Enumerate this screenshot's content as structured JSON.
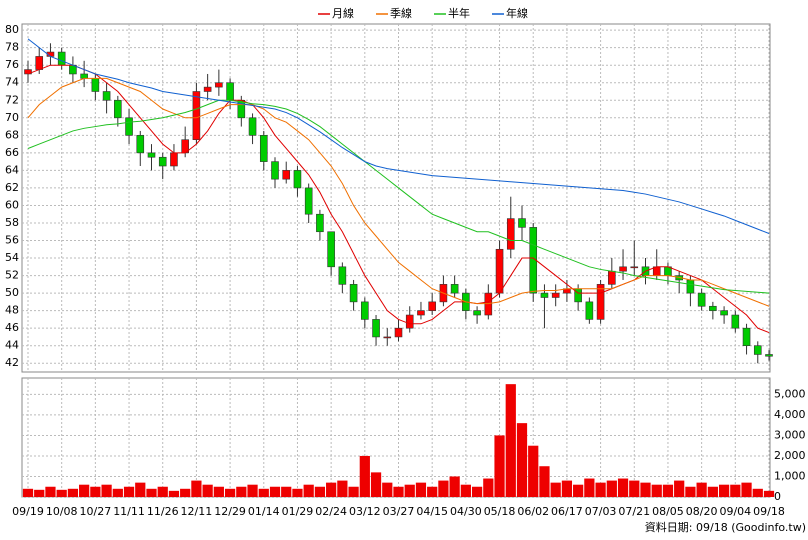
{
  "chart_data": {
    "type": "candlestick",
    "categories": [
      "09/19",
      null,
      null,
      "10/08",
      null,
      null,
      "10/27",
      null,
      null,
      "11/11",
      null,
      null,
      "11/26",
      null,
      null,
      "12/11",
      null,
      null,
      "12/29",
      null,
      null,
      "01/14",
      null,
      null,
      "01/29",
      null,
      null,
      "02/24",
      null,
      null,
      "03/12",
      null,
      null,
      "03/27",
      null,
      null,
      "04/15",
      null,
      null,
      "04/30",
      null,
      null,
      "05/18",
      null,
      null,
      "06/02",
      null,
      null,
      "06/17",
      null,
      null,
      "07/03",
      null,
      null,
      "07/21",
      null,
      null,
      "08/05",
      null,
      null,
      "08/20",
      null,
      null,
      "09/04",
      null,
      null,
      "09/18"
    ],
    "open": [
      75,
      75.5,
      77,
      77.5,
      76,
      75,
      74.5,
      73,
      72,
      70,
      68,
      66,
      65.5,
      64.5,
      66,
      67.5,
      73,
      73.5,
      74,
      72,
      70,
      68,
      65,
      63,
      64,
      62,
      59,
      57,
      53,
      51,
      49,
      47,
      45,
      45,
      46,
      47.5,
      48,
      49,
      51,
      50,
      48,
      47.5,
      50,
      55,
      58.5,
      57.5,
      50,
      49.5,
      50,
      50.5,
      49,
      47,
      51,
      52.5,
      53,
      53,
      52,
      53,
      52,
      51.5,
      50,
      48.5,
      48,
      47.5,
      46,
      44,
      43
    ],
    "high": [
      76.5,
      78,
      78.5,
      78,
      77,
      76.5,
      75,
      74,
      72.5,
      71,
      68.5,
      67,
      66,
      67,
      69,
      74,
      75,
      75.5,
      74.5,
      72.5,
      70.5,
      68.5,
      65.5,
      65,
      64.5,
      62.5,
      59.5,
      57,
      53.5,
      51.5,
      49.5,
      47.5,
      46,
      47,
      48.5,
      49,
      50,
      52,
      52,
      50.5,
      48.5,
      51,
      56,
      61,
      60,
      58,
      51,
      51,
      51.5,
      51,
      49.5,
      51.5,
      54,
      55,
      56,
      54,
      55,
      53.5,
      52.5,
      52,
      50.5,
      49,
      48.5,
      48,
      46.5,
      44.5,
      43.5
    ],
    "low": [
      74,
      75,
      76,
      75.5,
      74,
      73.5,
      72,
      70.5,
      69,
      67,
      64.5,
      64,
      63,
      64,
      65.5,
      67,
      72,
      72.5,
      71,
      69,
      67,
      64,
      62,
      62.5,
      61,
      58,
      56,
      52,
      50,
      48,
      46,
      44,
      44,
      44.5,
      45.5,
      47,
      47.5,
      48.5,
      49.5,
      47,
      46.5,
      47,
      49.5,
      54,
      56,
      49,
      46,
      48.5,
      49,
      48,
      46.5,
      46.5,
      50.5,
      51.5,
      52,
      51,
      51.5,
      51,
      50,
      48.5,
      48,
      47,
      46.5,
      45.5,
      43,
      42,
      42.3
    ],
    "close": [
      75.5,
      77,
      77.5,
      76,
      75,
      74.5,
      73,
      72,
      70,
      68,
      66,
      65.5,
      64.5,
      66,
      67.5,
      73,
      73.5,
      74,
      72,
      70,
      68,
      65,
      63,
      64,
      62,
      59,
      57,
      53,
      51,
      49,
      47,
      45,
      45,
      46,
      47.5,
      48,
      49,
      51,
      50,
      48,
      47.5,
      50,
      55,
      58.5,
      57.5,
      50,
      49.5,
      50,
      50.5,
      49,
      47,
      51,
      52.5,
      53,
      53,
      52,
      53,
      52,
      51.5,
      50,
      48.5,
      48,
      47.5,
      46,
      44,
      43,
      42.8
    ],
    "up_color": "#ff0000",
    "down_color": "#00cc00",
    "series": [
      {
        "name": "月線",
        "color": "#e00000",
        "values": [
          75,
          75.5,
          76,
          76,
          76,
          75.5,
          75,
          74,
          73,
          71.5,
          70,
          68.5,
          67,
          66,
          66,
          67,
          68.5,
          70.5,
          72,
          72,
          71.5,
          70,
          68,
          66.5,
          65,
          63.5,
          61.5,
          59,
          57,
          54.5,
          52,
          50,
          48,
          47,
          46.5,
          46.5,
          47,
          48,
          49,
          49,
          48.8,
          49,
          50,
          52,
          54,
          54,
          53,
          52,
          51,
          50,
          50,
          50,
          50.5,
          51,
          51.5,
          52.5,
          53,
          53,
          52.5,
          52,
          51.5,
          50.5,
          49.5,
          48.5,
          47.5,
          46,
          45.5
        ]
      },
      {
        "name": "季線",
        "color": "#f07000",
        "values": [
          70,
          71.5,
          72.5,
          73.5,
          74,
          74.5,
          74.5,
          74.5,
          74,
          73.5,
          73,
          72,
          71,
          70.5,
          70,
          70,
          70.5,
          71,
          71.5,
          71.5,
          71.5,
          71,
          70,
          69.5,
          68.5,
          67.5,
          66,
          64.5,
          62.5,
          60,
          58,
          56.5,
          55,
          53.5,
          52.5,
          51.5,
          50.5,
          50,
          49.5,
          49,
          48.8,
          48.8,
          49,
          49.5,
          50,
          50.2,
          50.3,
          50.3,
          50.5,
          50.5,
          50.5,
          50.5,
          50.5,
          51,
          51.5,
          52,
          52,
          52,
          51.8,
          51.5,
          51.5,
          51,
          50.5,
          50,
          49.5,
          49,
          48.5
        ]
      },
      {
        "name": "半年",
        "color": "#20c020",
        "values": [
          66.5,
          67,
          67.5,
          68,
          68.5,
          68.8,
          69,
          69.2,
          69.3,
          69.5,
          69.6,
          69.8,
          70,
          70.3,
          70.6,
          71,
          71.5,
          72,
          72,
          71.8,
          71.6,
          71.5,
          71.3,
          71,
          70.5,
          69.8,
          69,
          68,
          67,
          66,
          65,
          64,
          63,
          62,
          61,
          60,
          59,
          58.5,
          58,
          57.5,
          57,
          57,
          56.5,
          56,
          56,
          55.5,
          55,
          54.5,
          54,
          53.5,
          53,
          52.7,
          52.5,
          52.3,
          52,
          51.8,
          51.6,
          51.4,
          51.2,
          51,
          50.8,
          50.6,
          50.4,
          50.3,
          50.2,
          50.1,
          50
        ]
      },
      {
        "name": "年線",
        "color": "#1060d0",
        "values": [
          79,
          78,
          77,
          76.5,
          76,
          75.5,
          75,
          74.7,
          74.4,
          74,
          73.7,
          73.4,
          73,
          72.8,
          72.6,
          72.4,
          72.2,
          72,
          71.8,
          71.6,
          71.4,
          71.2,
          71,
          70.6,
          70,
          69.2,
          68.4,
          67.5,
          66.6,
          65.8,
          65,
          64.5,
          64.2,
          64,
          63.8,
          63.6,
          63.4,
          63.3,
          63.2,
          63.1,
          63,
          62.9,
          62.8,
          62.7,
          62.6,
          62.5,
          62.4,
          62.3,
          62.2,
          62.1,
          62,
          61.9,
          61.8,
          61.7,
          61.5,
          61.3,
          61,
          60.7,
          60.4,
          60,
          59.6,
          59.2,
          58.8,
          58.3,
          57.8,
          57.3,
          56.8
        ]
      }
    ],
    "volume": {
      "color": "#ee0000",
      "values": [
        400,
        350,
        500,
        350,
        400,
        600,
        500,
        600,
        400,
        500,
        700,
        400,
        500,
        300,
        400,
        800,
        600,
        500,
        400,
        500,
        600,
        400,
        500,
        500,
        400,
        600,
        500,
        700,
        800,
        500,
        2000,
        1200,
        700,
        500,
        600,
        700,
        500,
        800,
        1000,
        600,
        500,
        900,
        3000,
        5500,
        3600,
        2500,
        1500,
        700,
        800,
        600,
        900,
        700,
        800,
        900,
        800,
        700,
        600,
        600,
        800,
        500,
        700,
        500,
        600,
        600,
        700,
        400,
        300
      ]
    },
    "ylim": [
      41,
      80.7
    ],
    "yticks": [
      42,
      44,
      46,
      48,
      50,
      52,
      54,
      56,
      58,
      60,
      62,
      64,
      66,
      68,
      70,
      72,
      74,
      76,
      78,
      80
    ],
    "y2lim": [
      0,
      5800
    ],
    "y2ticks": [
      0,
      {
        "value": 1000,
        "label": "1,000"
      },
      {
        "value": 2000,
        "label": "2,000"
      },
      {
        "value": 3000,
        "label": "3,000"
      },
      {
        "value": 4000,
        "label": "4,000"
      },
      {
        "value": 5000,
        "label": "5,000"
      }
    ],
    "grid": true,
    "footnote": "資料日期: 09/18  (Goodinfo.tw)"
  }
}
